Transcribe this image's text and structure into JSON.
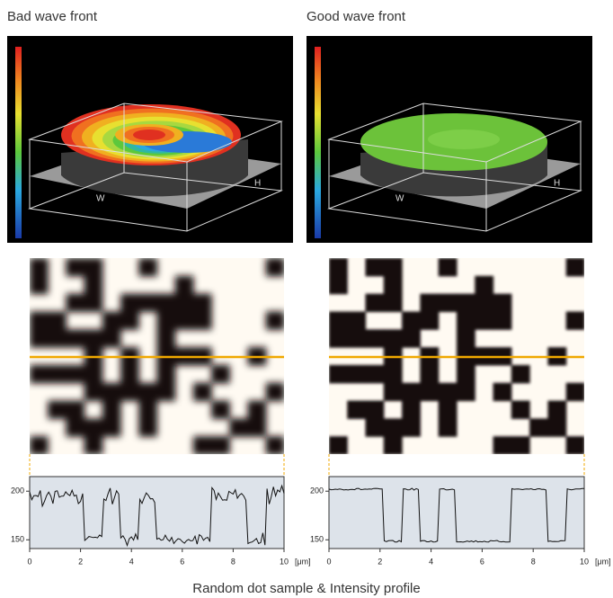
{
  "panels": [
    {
      "title": "Bad wave front",
      "axis_w": "W",
      "axis_h": "H",
      "profile": {
        "ylim": [
          141,
          215
        ],
        "yticks": [
          200,
          150
        ],
        "xlim": [
          0,
          10
        ],
        "xticks": [
          0,
          2,
          4,
          6,
          8,
          10
        ],
        "x_unit": "[μm]"
      }
    },
    {
      "title": "Good wave front",
      "axis_w": "W",
      "axis_h": "H",
      "profile": {
        "ylim": [
          141,
          215
        ],
        "yticks": [
          200,
          150
        ],
        "xlim": [
          0,
          10
        ],
        "xticks": [
          0,
          2,
          4,
          6,
          8,
          10
        ],
        "x_unit": "[μm]"
      }
    }
  ],
  "caption": "Random dot sample & Intensity profile"
}
